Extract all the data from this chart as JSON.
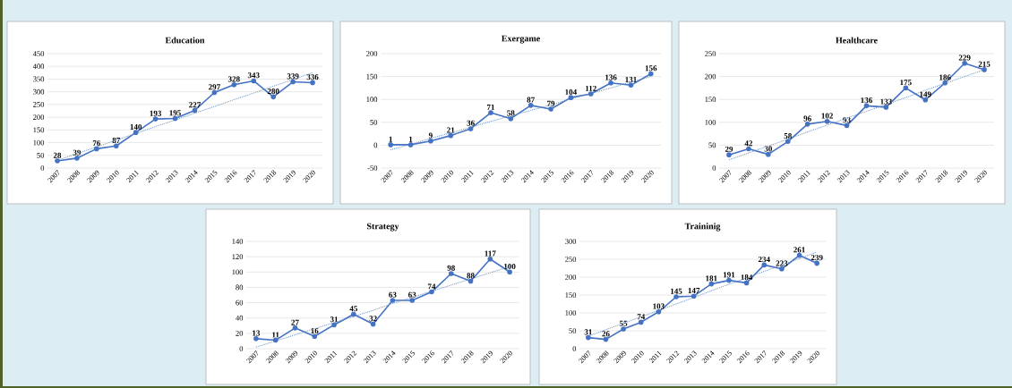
{
  "chart_data": [
    {
      "type": "line",
      "title": "Education",
      "categories": [
        "2007",
        "2008",
        "2009",
        "2010",
        "2011",
        "2012",
        "2013",
        "2014",
        "2015",
        "2016",
        "2017",
        "2018",
        "2019",
        "2020"
      ],
      "ylim": [
        0,
        450
      ],
      "yticks": [
        0,
        50,
        100,
        150,
        200,
        250,
        300,
        350,
        400,
        450
      ],
      "grid": "y",
      "series": [
        {
          "color": "#4472c4",
          "marker": "circle",
          "line_style": "solid",
          "values": [
            28,
            39,
            76,
            87,
            140,
            193,
            195,
            227,
            297,
            328,
            343,
            280,
            339,
            336
          ],
          "value_labels": [
            "28",
            "39",
            "76",
            "87",
            "140",
            "193",
            "195",
            "227",
            "297",
            "328",
            "343",
            "280",
            "339",
            "336"
          ]
        },
        {
          "type": "line",
          "color": "#6a8fc0",
          "marker": "none",
          "line_style": "dotted",
          "values": [
            30,
            57,
            83,
            110,
            136,
            163,
            189,
            216,
            242,
            269,
            295,
            322,
            348,
            375
          ]
        }
      ]
    },
    {
      "type": "line",
      "title": "Exergame",
      "categories": [
        "2007",
        "2008",
        "2009",
        "2010",
        "2011",
        "2012",
        "2013",
        "2014",
        "2015",
        "2016",
        "2017",
        "2018",
        "2019",
        "2020"
      ],
      "ylim": [
        -50,
        200
      ],
      "yticks": [
        -50,
        0,
        50,
        100,
        150,
        200
      ],
      "grid": "y",
      "series": [
        {
          "color": "#4472c4",
          "marker": "circle",
          "line_style": "solid",
          "values": [
            1,
            1,
            9,
            21,
            36,
            71,
            58,
            87,
            79,
            104,
            112,
            136,
            131,
            156
          ],
          "value_labels": [
            "1",
            "1",
            "9",
            "21",
            "36",
            "71",
            "58",
            "87",
            "79",
            "104",
            "112",
            "136",
            "131",
            "156"
          ]
        },
        {
          "type": "line",
          "color": "#6a8fc0",
          "marker": "none",
          "line_style": "dotted",
          "values": [
            -10,
            2,
            15,
            27,
            39,
            52,
            64,
            76,
            88,
            101,
            113,
            125,
            138,
            150
          ]
        }
      ]
    },
    {
      "type": "line",
      "title": "Healthcare",
      "categories": [
        "2007",
        "2008",
        "2009",
        "2010",
        "2011",
        "2012",
        "2013",
        "2014",
        "2015",
        "2016",
        "2017",
        "2018",
        "2019",
        "2020"
      ],
      "ylim": [
        0,
        250
      ],
      "yticks": [
        0,
        50,
        100,
        150,
        200,
        250
      ],
      "grid": "y",
      "series": [
        {
          "color": "#4472c4",
          "marker": "circle",
          "line_style": "solid",
          "values": [
            29,
            42,
            30,
            58,
            96,
            102,
            93,
            136,
            133,
            175,
            149,
            186,
            229,
            215
          ],
          "value_labels": [
            "29",
            "42",
            "30",
            "58",
            "96",
            "102",
            "93",
            "136",
            "133",
            "175",
            "149",
            "186",
            "229",
            "215"
          ]
        },
        {
          "type": "line",
          "color": "#6a8fc0",
          "marker": "none",
          "line_style": "dotted",
          "values": [
            18,
            33,
            48,
            63,
            79,
            94,
            109,
            124,
            139,
            154,
            170,
            185,
            200,
            215
          ]
        }
      ]
    },
    {
      "type": "line",
      "title": "Strategy",
      "categories": [
        "2007",
        "2008",
        "2009",
        "2010",
        "2011",
        "2012",
        "2013",
        "2014",
        "2015",
        "2016",
        "2017",
        "2018",
        "2019",
        "2020"
      ],
      "ylim": [
        0,
        140
      ],
      "yticks": [
        0,
        20,
        40,
        60,
        80,
        100,
        120,
        140
      ],
      "grid": "y",
      "series": [
        {
          "color": "#4472c4",
          "marker": "circle",
          "line_style": "solid",
          "values": [
            13,
            11,
            27,
            16,
            31,
            45,
            32,
            63,
            63,
            74,
            98,
            88,
            117,
            100
          ],
          "value_labels": [
            "13",
            "11",
            "27",
            "16",
            "31",
            "45",
            "32",
            "63",
            "63",
            "74",
            "98",
            "88",
            "117",
            "100"
          ]
        },
        {
          "type": "line",
          "color": "#6a8fc0",
          "marker": "none",
          "line_style": "dotted",
          "values": [
            2,
            10,
            18,
            26,
            34,
            42,
            50,
            59,
            67,
            75,
            83,
            91,
            99,
            107
          ]
        }
      ]
    },
    {
      "type": "line",
      "title": "Traininig",
      "categories": [
        "2007",
        "2008",
        "2009",
        "2010",
        "2011",
        "2012",
        "2013",
        "2014",
        "2015",
        "2016",
        "2017",
        "2018",
        "2019",
        "2020"
      ],
      "ylim": [
        0,
        300
      ],
      "yticks": [
        0,
        50,
        100,
        150,
        200,
        250,
        300
      ],
      "grid": "y",
      "series": [
        {
          "color": "#4472c4",
          "marker": "circle",
          "line_style": "solid",
          "values": [
            31,
            26,
            55,
            74,
            103,
            145,
            147,
            181,
            191,
            184,
            234,
            223,
            261,
            239
          ],
          "value_labels": [
            "31",
            "26",
            "55",
            "74",
            "103",
            "145",
            "147",
            "181",
            "191",
            "184",
            "234",
            "223",
            "261",
            "239"
          ]
        },
        {
          "type": "line",
          "color": "#6a8fc0",
          "marker": "none",
          "line_style": "dotted",
          "values": [
            35,
            53,
            71,
            89,
            107,
            125,
            143,
            162,
            180,
            198,
            216,
            234,
            252,
            270
          ]
        }
      ]
    }
  ]
}
